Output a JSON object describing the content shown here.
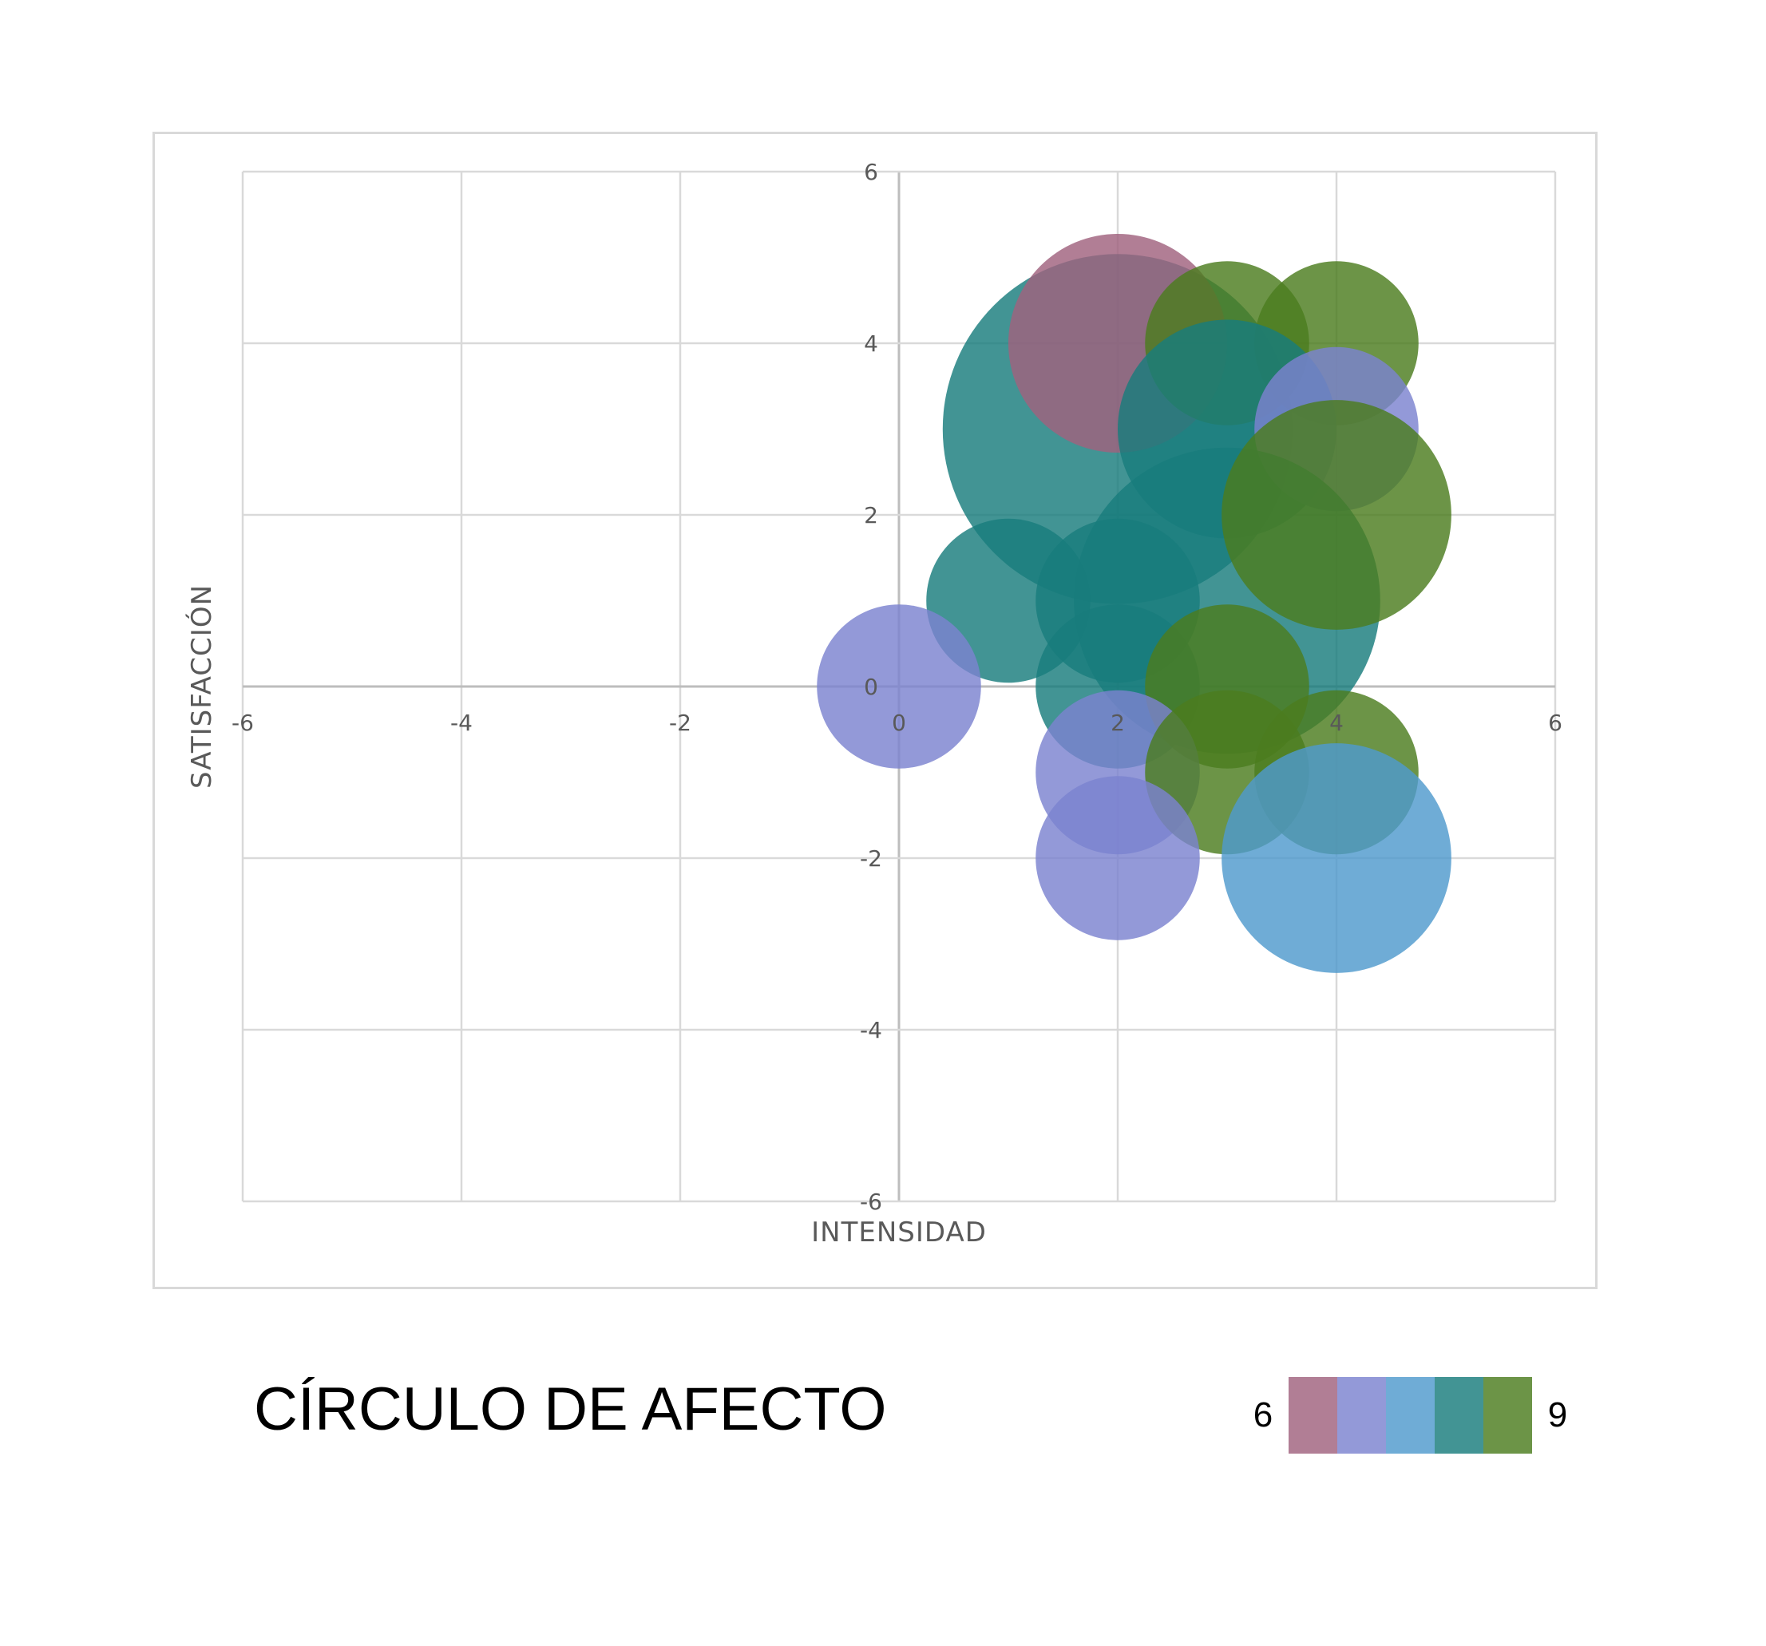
{
  "chart_data": {
    "type": "scatter",
    "variant": "bubble",
    "title": "CÍRCULO DE AFECTO",
    "xlabel": "INTENSIDAD",
    "ylabel": "SATISFACCIÓN",
    "xlim": [
      -6,
      6
    ],
    "ylim": [
      -6,
      6
    ],
    "xticks": [
      "-6",
      "-4",
      "-2",
      "0",
      "2",
      "4",
      "6"
    ],
    "yticks": [
      "6",
      "4",
      "2",
      "0",
      "-2",
      "-4",
      "-6"
    ],
    "grid": true,
    "color_scale": {
      "min_label": "6",
      "max_label": "9",
      "colors": [
        "#a0627e",
        "#7b82cf",
        "#4f9acd",
        "#187c7c",
        "#4c7c1e"
      ]
    },
    "points": [
      {
        "x": 2,
        "y": 3,
        "size": 3.2,
        "color": "#187c7c"
      },
      {
        "x": 2,
        "y": 4,
        "size": 2.0,
        "color": "#a0627e"
      },
      {
        "x": 3,
        "y": 4,
        "size": 1.5,
        "color": "#4c7c1e"
      },
      {
        "x": 4,
        "y": 4,
        "size": 1.5,
        "color": "#4c7c1e"
      },
      {
        "x": 3,
        "y": 3,
        "size": 2.0,
        "color": "#187c7c"
      },
      {
        "x": 4,
        "y": 3,
        "size": 1.5,
        "color": "#7b82cf"
      },
      {
        "x": 3,
        "y": 1,
        "size": 2.8,
        "color": "#187c7c"
      },
      {
        "x": 4,
        "y": 2,
        "size": 2.1,
        "color": "#4c7c1e"
      },
      {
        "x": 1,
        "y": 1,
        "size": 1.5,
        "color": "#187c7c"
      },
      {
        "x": 2,
        "y": 1,
        "size": 1.5,
        "color": "#187c7c"
      },
      {
        "x": 0,
        "y": 0,
        "size": 1.5,
        "color": "#7b82cf"
      },
      {
        "x": 2,
        "y": 0,
        "size": 1.5,
        "color": "#187c7c"
      },
      {
        "x": 3,
        "y": 0,
        "size": 1.5,
        "color": "#4c7c1e"
      },
      {
        "x": 2,
        "y": -1,
        "size": 1.5,
        "color": "#7b82cf"
      },
      {
        "x": 3,
        "y": -1,
        "size": 1.5,
        "color": "#4c7c1e"
      },
      {
        "x": 4,
        "y": -1,
        "size": 1.5,
        "color": "#4c7c1e"
      },
      {
        "x": 2,
        "y": -2,
        "size": 1.5,
        "color": "#7b82cf"
      },
      {
        "x": 4,
        "y": -2,
        "size": 2.1,
        "color": "#4f9acd"
      }
    ]
  }
}
